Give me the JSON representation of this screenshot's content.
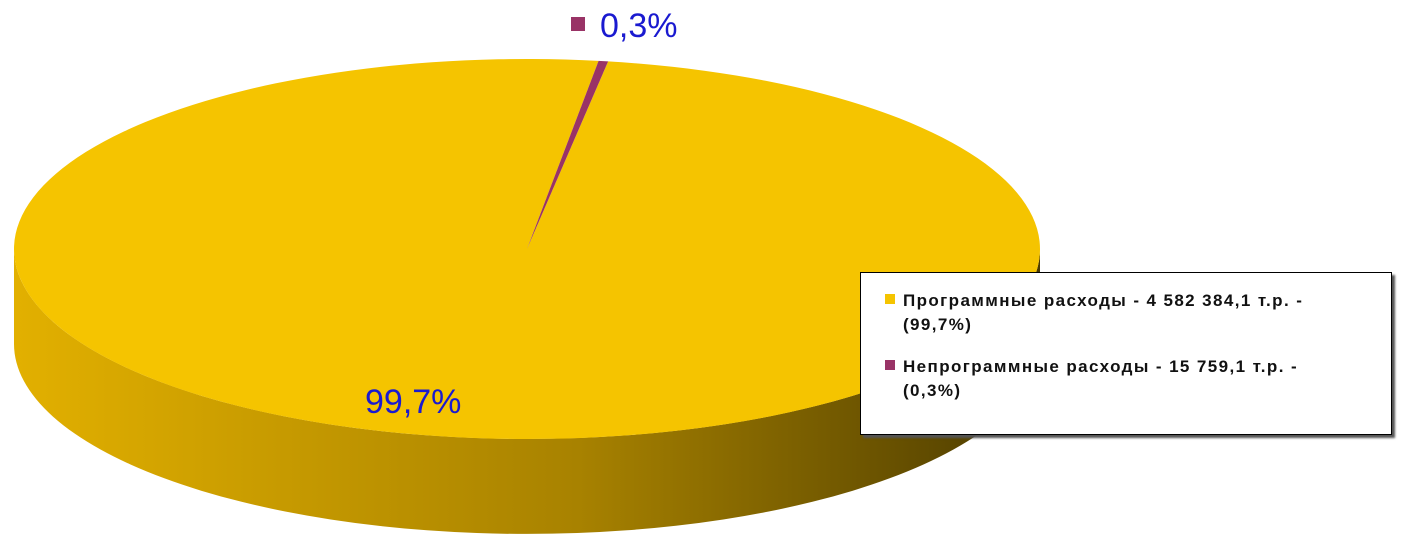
{
  "chart_data": {
    "type": "pie",
    "categories": [
      "Программные расходы - 4 582 384,1 т.р. - (99,7%)",
      "Непрограммные расходы - 15 759,1 т.р. - (0,3%)"
    ],
    "values": [
      99.7,
      0.3
    ],
    "value_labels": [
      "99,7%",
      "0,3%"
    ],
    "colors": [
      "#f5c400",
      "#993366"
    ],
    "legend": "right"
  }
}
